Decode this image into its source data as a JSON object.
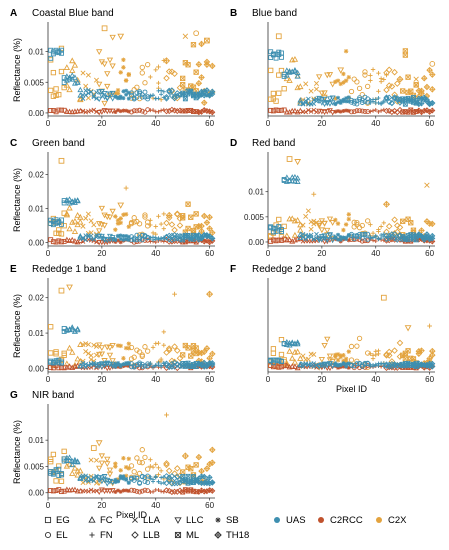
{
  "legend": {
    "shapes": [
      {
        "key": "EG",
        "label": "EG",
        "symbol": "square"
      },
      {
        "key": "FC",
        "label": "FC",
        "symbol": "triangle"
      },
      {
        "key": "LLA",
        "label": "LLA",
        "symbol": "cross"
      },
      {
        "key": "LLC",
        "label": "LLC",
        "symbol": "triangle-down"
      },
      {
        "key": "SB",
        "label": "SB",
        "symbol": "asterisk"
      },
      {
        "key": "EL",
        "label": "EL",
        "symbol": "circle"
      },
      {
        "key": "FN",
        "label": "FN",
        "symbol": "plus"
      },
      {
        "key": "LLB",
        "label": "LLB",
        "symbol": "diamond"
      },
      {
        "key": "ML",
        "label": "ML",
        "symbol": "boxed-x"
      },
      {
        "key": "TH18",
        "label": "TH18",
        "symbol": "star-plus"
      }
    ],
    "colors": [
      {
        "key": "UAS",
        "label": "UAS",
        "color": "#3e8fb0"
      },
      {
        "key": "C2RCC",
        "label": "C2RCC",
        "color": "#c0522d"
      },
      {
        "key": "C2X",
        "label": "C2X",
        "color": "#e3a33e"
      }
    ]
  },
  "chart_data": [
    {
      "letter": "A",
      "type": "scatter",
      "title": "Coastal Blue band",
      "ylabel": "Reflectance (%)",
      "xlabel": "",
      "xlim": [
        0,
        62
      ],
      "ylim": [
        -0.0005,
        0.0145
      ],
      "xticks": [
        0,
        20,
        40,
        60
      ],
      "yticks": [
        0.0,
        0.005,
        0.01
      ],
      "ytick_labels": [
        "0.00",
        "0.005",
        "0.01"
      ],
      "uas": {
        "groups": [
          [
            1,
            5,
            0.0095
          ],
          [
            6,
            11,
            0.0055
          ]
        ],
        "flat": 0.003,
        "noise": 0.0015
      },
      "c2x": {
        "spread": 0.0045,
        "max": 0.0138,
        "base": 0.004
      },
      "spikes": [
        [
          21,
          0.0138
        ],
        [
          27,
          0.0125
        ],
        [
          41,
          0.0075
        ],
        [
          44,
          0.0085
        ],
        [
          51,
          0.0125
        ],
        [
          55,
          0.013
        ],
        [
          59,
          0.0118
        ]
      ]
    },
    {
      "letter": "B",
      "type": "scatter",
      "title": "Blue band",
      "ylabel": "",
      "xlabel": "",
      "xlim": [
        0,
        62
      ],
      "ylim": [
        -0.0005,
        0.0145
      ],
      "xticks": [
        0,
        20,
        40,
        60
      ],
      "yticks": [],
      "ytick_labels": [],
      "uas": {
        "groups": [
          [
            1,
            5,
            0.0095
          ],
          [
            6,
            11,
            0.0065
          ]
        ],
        "flat": 0.002,
        "noise": 0.0012
      },
      "c2x": {
        "spread": 0.0035,
        "max": 0.012,
        "base": 0.0035
      },
      "spikes": [
        [
          4,
          0.0125
        ],
        [
          27,
          0.007
        ],
        [
          44,
          0.0062
        ],
        [
          49,
          0.0055
        ],
        [
          55,
          0.0055
        ],
        [
          61,
          0.008
        ]
      ]
    },
    {
      "letter": "C",
      "type": "scatter",
      "title": "Green band",
      "ylabel": "Reflectance (%)",
      "xlabel": "",
      "xlim": [
        0,
        62
      ],
      "ylim": [
        -0.001,
        0.026
      ],
      "xticks": [
        0,
        20,
        40,
        60
      ],
      "yticks": [
        0.0,
        0.01,
        0.02
      ],
      "ytick_labels": [
        "0.00",
        "0.01",
        "0.02"
      ],
      "uas": {
        "groups": [
          [
            1,
            5,
            0.006
          ],
          [
            6,
            11,
            0.012
          ]
        ],
        "flat": 0.0015,
        "noise": 0.0015
      },
      "c2x": {
        "spread": 0.004,
        "max": 0.024,
        "base": 0.0045
      },
      "spikes": [
        [
          5,
          0.024
        ],
        [
          27,
          0.011
        ],
        [
          29,
          0.016
        ],
        [
          45,
          0.008
        ]
      ]
    },
    {
      "letter": "D",
      "type": "scatter",
      "title": "Red band",
      "ylabel": "",
      "xlabel": "",
      "xlim": [
        0,
        62
      ],
      "ylim": [
        -0.0008,
        0.0175
      ],
      "xticks": [
        0,
        20,
        40,
        60
      ],
      "yticks": [
        0.0,
        0.005,
        0.01
      ],
      "ytick_labels": [
        "0.00",
        "0.005",
        "0.01"
      ],
      "uas": {
        "groups": [
          [
            1,
            5,
            0.0025
          ],
          [
            6,
            11,
            0.0125
          ]
        ],
        "flat": 0.001,
        "noise": 0.0012
      },
      "c2x": {
        "spread": 0.0025,
        "max": 0.016,
        "base": 0.002
      },
      "spikes": [
        [
          8,
          0.0165
        ],
        [
          11,
          0.016
        ],
        [
          17,
          0.0095
        ],
        [
          44,
          0.0075
        ],
        [
          59,
          0.0113
        ]
      ]
    },
    {
      "letter": "E",
      "type": "scatter",
      "title": "Rededge 1 band",
      "ylabel": "Reflectance (%)",
      "xlabel": "",
      "xlim": [
        0,
        62
      ],
      "ylim": [
        -0.001,
        0.025
      ],
      "xticks": [
        0,
        20,
        40,
        60
      ],
      "yticks": [
        0.0,
        0.01,
        0.02
      ],
      "ytick_labels": [
        "0.00",
        "0.01",
        "0.02"
      ],
      "uas": {
        "groups": [
          [
            1,
            5,
            0.002
          ],
          [
            6,
            11,
            0.011
          ]
        ],
        "flat": 0.001,
        "noise": 0.0012
      },
      "c2x": {
        "spread": 0.004,
        "max": 0.023,
        "base": 0.003
      },
      "spikes": [
        [
          5,
          0.022
        ],
        [
          8,
          0.023
        ],
        [
          47,
          0.021
        ],
        [
          60,
          0.021
        ]
      ]
    },
    {
      "letter": "F",
      "type": "scatter",
      "title": "Rededge 2 band",
      "ylabel": "",
      "xlabel": "Pixel ID",
      "xlim": [
        0,
        62
      ],
      "ylim": [
        -0.001,
        0.025
      ],
      "xticks": [
        0,
        20,
        40,
        60
      ],
      "yticks": [],
      "ytick_labels": [],
      "uas": {
        "groups": [
          [
            1,
            5,
            0.002
          ],
          [
            6,
            11,
            0.007
          ]
        ],
        "flat": 0.001,
        "noise": 0.001
      },
      "c2x": {
        "spread": 0.003,
        "max": 0.02,
        "base": 0.002
      },
      "spikes": [
        [
          43,
          0.02
        ],
        [
          52,
          0.0115
        ],
        [
          60,
          0.012
        ]
      ]
    },
    {
      "letter": "G",
      "type": "scatter",
      "title": "NIR band",
      "ylabel": "Reflectance (%)",
      "xlabel": "Pixel ID",
      "xlim": [
        0,
        62
      ],
      "ylim": [
        -0.001,
        0.0165
      ],
      "xticks": [
        0,
        20,
        40,
        60
      ],
      "yticks": [
        0.0,
        0.005,
        0.01
      ],
      "ytick_labels": [
        "0.00",
        "0.005",
        "0.01"
      ],
      "uas": {
        "groups": [
          [
            1,
            5,
            0.004
          ],
          [
            6,
            11,
            0.006
          ]
        ],
        "flat": 0.0025,
        "noise": 0.0015
      },
      "c2x": {
        "spread": 0.003,
        "max": 0.0155,
        "base": 0.0035
      },
      "spikes": [
        [
          17,
          0.0085
        ],
        [
          19,
          0.0095
        ],
        [
          44,
          0.0148
        ],
        [
          51,
          0.007
        ]
      ]
    }
  ]
}
